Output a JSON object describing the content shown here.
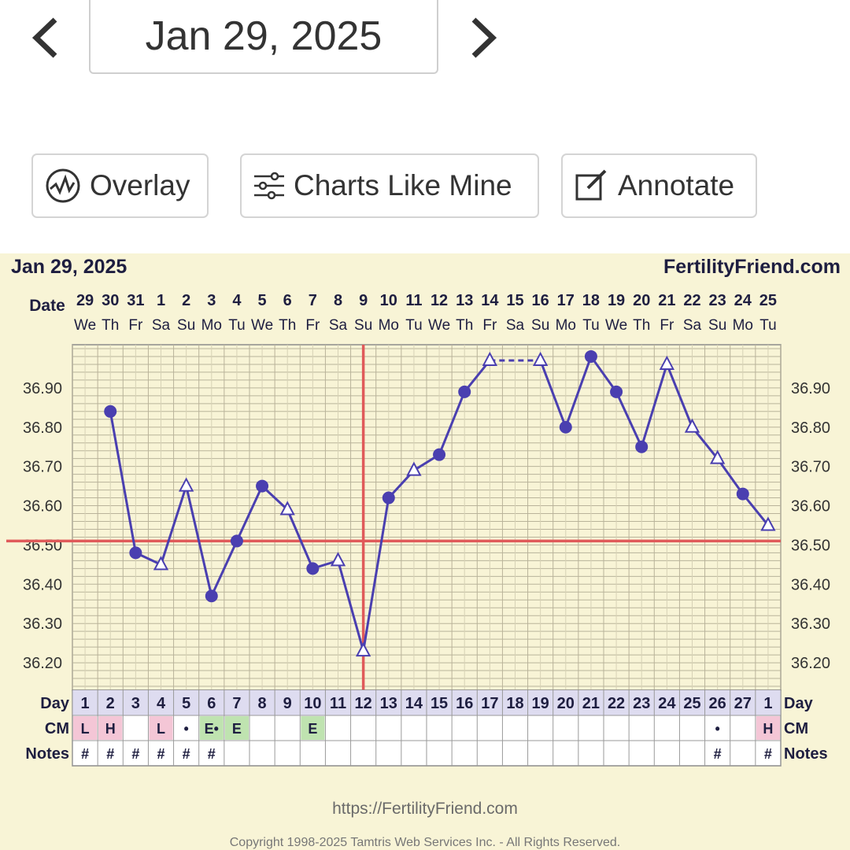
{
  "nav": {
    "current_date": "Jan 29, 2025"
  },
  "buttons": {
    "overlay": "Overlay",
    "charts_like_mine": "Charts Like Mine",
    "annotate": "Annotate"
  },
  "panel": {
    "date": "Jan 29, 2025",
    "site": "FertilityFriend.com"
  },
  "footer": {
    "url": "https://FertilityFriend.com",
    "copyright": "Copyright 1998-2025 Tamtris Web Services Inc. - All Rights Reserved."
  },
  "colors": {
    "line": "#4a3fb0",
    "coverline": "#e05a5a",
    "panel_bg": "#f8f4d6",
    "cm_pink": "#f4c6d6",
    "cm_green": "#bfe3b0"
  },
  "chart_data": {
    "type": "line",
    "row_labels": {
      "date": "Date",
      "day": "Day",
      "cm": "CM",
      "notes": "Notes"
    },
    "dates": [
      "29",
      "30",
      "31",
      "1",
      "2",
      "3",
      "4",
      "5",
      "6",
      "7",
      "8",
      "9",
      "10",
      "11",
      "12",
      "13",
      "14",
      "15",
      "16",
      "17",
      "18",
      "19",
      "20",
      "21",
      "22",
      "23",
      "24",
      "25"
    ],
    "weekdays": [
      "We",
      "Th",
      "Fr",
      "Sa",
      "Su",
      "Mo",
      "Tu",
      "We",
      "Th",
      "Fr",
      "Sa",
      "Su",
      "Mo",
      "Tu",
      "We",
      "Th",
      "Fr",
      "Sa",
      "Su",
      "Mo",
      "Tu",
      "We",
      "Th",
      "Fr",
      "Sa",
      "Su",
      "Mo",
      "Tu"
    ],
    "cycle_days": [
      "1",
      "2",
      "3",
      "4",
      "5",
      "6",
      "7",
      "8",
      "9",
      "10",
      "11",
      "12",
      "13",
      "14",
      "15",
      "16",
      "17",
      "18",
      "19",
      "20",
      "21",
      "22",
      "23",
      "24",
      "25",
      "26",
      "27",
      "1"
    ],
    "temperatures": [
      null,
      36.84,
      36.48,
      36.45,
      36.65,
      36.37,
      36.51,
      36.65,
      36.59,
      36.44,
      36.46,
      36.23,
      36.62,
      36.69,
      36.73,
      36.89,
      36.97,
      null,
      36.97,
      36.8,
      36.98,
      36.89,
      36.75,
      36.96,
      36.8,
      36.72,
      36.63,
      36.55
    ],
    "markers": [
      "",
      "dot",
      "dot",
      "triangle",
      "triangle",
      "dot",
      "dot",
      "dot",
      "triangle",
      "dot",
      "triangle",
      "triangle",
      "dot",
      "triangle",
      "dot",
      "dot",
      "triangle",
      "",
      "triangle",
      "dot",
      "dot",
      "dot",
      "dot",
      "triangle",
      "triangle",
      "triangle",
      "dot",
      "triangle"
    ],
    "cm": [
      "L",
      "H",
      "",
      "L",
      "•",
      "E•",
      "E",
      "",
      "",
      "E",
      "",
      "",
      "",
      "",
      "",
      "",
      "",
      "",
      "",
      "",
      "",
      "",
      "",
      "",
      "",
      "•",
      "",
      "H"
    ],
    "notes": [
      "#",
      "#",
      "#",
      "#",
      "#",
      "#",
      "",
      "",
      "",
      "",
      "",
      "",
      "",
      "",
      "",
      "",
      "",
      "",
      "",
      "",
      "",
      "",
      "",
      "",
      "",
      "#",
      "",
      "#"
    ],
    "y_ticks": [
      "36.90",
      "36.80",
      "36.70",
      "36.60",
      "36.50",
      "36.40",
      "36.30",
      "36.20"
    ],
    "ylim": [
      36.13,
      37.01
    ],
    "coverline": 36.51,
    "ovulation_day_index": 11,
    "dashed_gap": [
      16,
      18
    ]
  }
}
